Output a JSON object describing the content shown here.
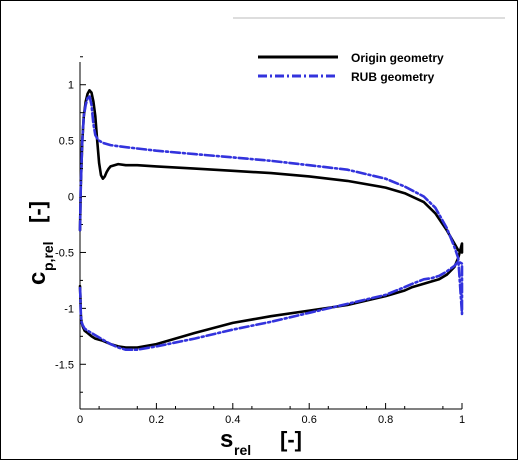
{
  "chart_data": {
    "type": "line",
    "xlim": [
      0,
      1
    ],
    "ylim": [
      -1.9,
      1.4
    ],
    "x_ticks": [
      {
        "value": 0,
        "label": "0"
      },
      {
        "value": 0.2,
        "label": "0.2"
      },
      {
        "value": 0.4,
        "label": "0.4"
      },
      {
        "value": 0.6,
        "label": "0.6"
      },
      {
        "value": 0.8,
        "label": "0.8"
      },
      {
        "value": 1,
        "label": "1"
      }
    ],
    "y_ticks": [
      {
        "value": 1,
        "label": "1"
      },
      {
        "value": 0.5,
        "label": "0.5"
      },
      {
        "value": 0,
        "label": "0"
      },
      {
        "value": -0.5,
        "label": "-0.5"
      },
      {
        "value": -1,
        "label": "-1"
      },
      {
        "value": -1.5,
        "label": "-1.5"
      }
    ],
    "xlabel": {
      "main": "s",
      "sub": "rel",
      "unit": "[-]"
    },
    "ylabel": {
      "main": "c",
      "sub": "p,rel",
      "unit": "[-]"
    },
    "grid": false,
    "legend_position": "top-right",
    "series": [
      {
        "name": "Origin geometry",
        "color": "#000000",
        "dash": "solid",
        "x": [
          0.0,
          0.002,
          0.006,
          0.01,
          0.015,
          0.02,
          0.025,
          0.03,
          0.035,
          0.04,
          0.045,
          0.05,
          0.055,
          0.06,
          0.065,
          0.07,
          0.075,
          0.08,
          0.09,
          0.1,
          0.12,
          0.15,
          0.2,
          0.3,
          0.4,
          0.5,
          0.6,
          0.7,
          0.8,
          0.85,
          0.9,
          0.93,
          0.96,
          0.98,
          0.99,
          1.0,
          1.0,
          0.99,
          0.98,
          0.96,
          0.94,
          0.92,
          0.9,
          0.87,
          0.85,
          0.8,
          0.7,
          0.6,
          0.5,
          0.4,
          0.3,
          0.2,
          0.15,
          0.12,
          0.1,
          0.08,
          0.06,
          0.04,
          0.03,
          0.02,
          0.012,
          0.007,
          0.004,
          0.002,
          0.001,
          0.0
        ],
        "y": [
          -0.3,
          0.1,
          0.5,
          0.72,
          0.85,
          0.92,
          0.95,
          0.93,
          0.85,
          0.72,
          0.5,
          0.3,
          0.19,
          0.16,
          0.18,
          0.22,
          0.25,
          0.27,
          0.28,
          0.29,
          0.28,
          0.28,
          0.27,
          0.25,
          0.23,
          0.21,
          0.18,
          0.14,
          0.08,
          0.03,
          -0.05,
          -0.15,
          -0.3,
          -0.42,
          -0.48,
          -0.5,
          -0.42,
          -0.55,
          -0.63,
          -0.7,
          -0.74,
          -0.76,
          -0.78,
          -0.81,
          -0.84,
          -0.89,
          -0.97,
          -1.02,
          -1.07,
          -1.13,
          -1.22,
          -1.32,
          -1.35,
          -1.35,
          -1.34,
          -1.32,
          -1.29,
          -1.27,
          -1.25,
          -1.22,
          -1.2,
          -1.16,
          -1.12,
          -1.05,
          -0.9,
          -0.8
        ]
      },
      {
        "name": "RUB geometry",
        "color": "#3333dd",
        "dash": "dashdot",
        "x": [
          0.0,
          0.002,
          0.006,
          0.01,
          0.015,
          0.02,
          0.025,
          0.03,
          0.035,
          0.04,
          0.045,
          0.05,
          0.06,
          0.08,
          0.1,
          0.15,
          0.2,
          0.3,
          0.4,
          0.5,
          0.6,
          0.7,
          0.8,
          0.85,
          0.9,
          0.93,
          0.96,
          0.98,
          0.99,
          1.0,
          1.0,
          0.99,
          0.98,
          0.96,
          0.94,
          0.92,
          0.9,
          0.87,
          0.85,
          0.8,
          0.7,
          0.6,
          0.5,
          0.4,
          0.3,
          0.2,
          0.15,
          0.12,
          0.1,
          0.08,
          0.06,
          0.04,
          0.03,
          0.02,
          0.012,
          0.007,
          0.004,
          0.002,
          0.001,
          0.0
        ],
        "y": [
          -0.3,
          0.1,
          0.5,
          0.72,
          0.82,
          0.88,
          0.9,
          0.82,
          0.65,
          0.55,
          0.52,
          0.5,
          0.48,
          0.46,
          0.45,
          0.43,
          0.41,
          0.38,
          0.35,
          0.32,
          0.28,
          0.24,
          0.16,
          0.09,
          0.0,
          -0.1,
          -0.28,
          -0.45,
          -0.55,
          -1.05,
          -0.6,
          -0.58,
          -0.62,
          -0.67,
          -0.71,
          -0.73,
          -0.74,
          -0.78,
          -0.81,
          -0.88,
          -0.96,
          -1.04,
          -1.12,
          -1.19,
          -1.27,
          -1.34,
          -1.37,
          -1.37,
          -1.35,
          -1.32,
          -1.28,
          -1.24,
          -1.22,
          -1.2,
          -1.18,
          -1.15,
          -1.12,
          -1.05,
          -0.9,
          -0.8
        ]
      }
    ]
  }
}
